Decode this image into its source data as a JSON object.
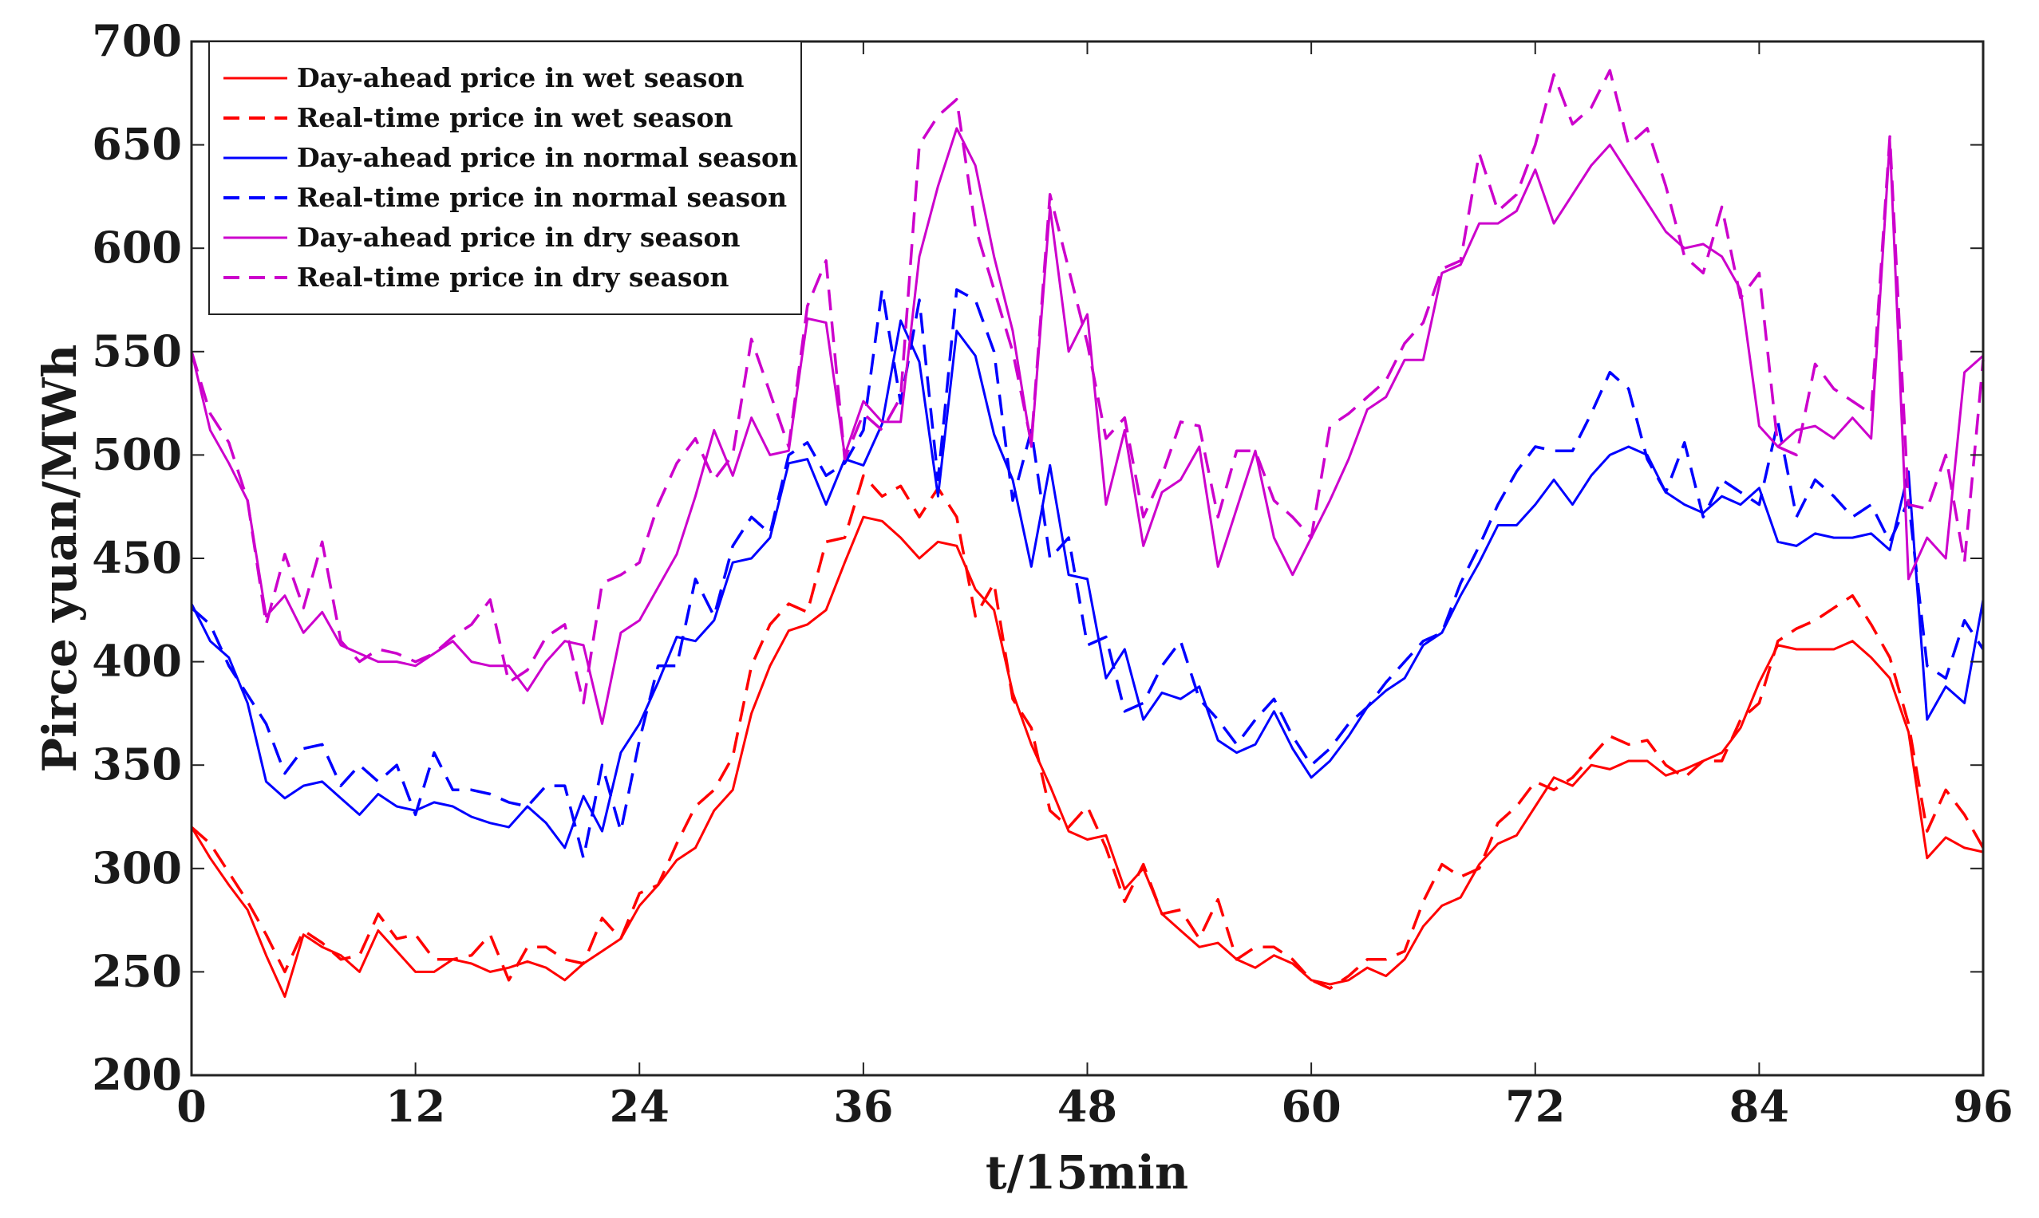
{
  "chart_data": {
    "type": "line",
    "title": "",
    "xlabel": "t/15min",
    "ylabel": "Pirce yuan/MWh",
    "xlim": [
      0,
      96
    ],
    "ylim": [
      200,
      700
    ],
    "xticks": [
      0,
      12,
      24,
      36,
      48,
      60,
      72,
      84,
      96
    ],
    "yticks": [
      200,
      250,
      300,
      350,
      400,
      450,
      500,
      550,
      600,
      650,
      700
    ],
    "grid": false,
    "legend_position": "top-left",
    "x": [
      0,
      1,
      2,
      3,
      4,
      5,
      6,
      7,
      8,
      9,
      10,
      11,
      12,
      13,
      14,
      15,
      16,
      17,
      18,
      19,
      20,
      21,
      22,
      23,
      24,
      25,
      26,
      27,
      28,
      29,
      30,
      31,
      32,
      33,
      34,
      35,
      36,
      37,
      38,
      39,
      40,
      41,
      42,
      43,
      44,
      45,
      46,
      47,
      48,
      49,
      50,
      51,
      52,
      53,
      54,
      55,
      56,
      57,
      58,
      59,
      60,
      61,
      62,
      63,
      64,
      65,
      66,
      67,
      68,
      69,
      70,
      71,
      72,
      73,
      74,
      75,
      76,
      77,
      78,
      79,
      80,
      81,
      82,
      83,
      84,
      85,
      86,
      87,
      88,
      89,
      90,
      91,
      92,
      93,
      94,
      95,
      96
    ],
    "series": [
      {
        "name": "Day-ahead price in wet season",
        "color": "#ff0000",
        "style": "solid",
        "values": [
          320,
          305,
          292,
          280,
          258,
          238,
          268,
          262,
          258,
          250,
          270,
          260,
          250,
          250,
          256,
          254,
          250,
          252,
          255,
          252,
          246,
          254,
          260,
          266,
          282,
          292,
          304,
          310,
          328,
          338,
          375,
          398,
          415,
          418,
          425,
          448,
          470,
          468,
          460,
          450,
          458,
          456,
          435,
          425,
          385,
          360,
          340,
          318,
          314,
          316,
          290,
          300,
          278,
          270,
          262,
          264,
          256,
          252,
          258,
          254,
          246,
          244,
          246,
          252,
          248,
          256,
          272,
          282,
          286,
          302,
          312,
          316,
          330,
          344,
          340,
          350,
          348,
          352,
          352,
          345,
          348,
          352,
          356,
          368,
          390,
          408,
          406,
          406,
          406,
          410,
          402,
          392,
          366,
          305,
          315,
          310,
          308
        ]
      },
      {
        "name": "Real-time price in wet season",
        "color": "#ff0000",
        "style": "dashed",
        "values": [
          320,
          312,
          298,
          284,
          268,
          250,
          270,
          264,
          256,
          258,
          278,
          266,
          268,
          256,
          256,
          258,
          268,
          246,
          262,
          262,
          256,
          254,
          276,
          266,
          288,
          292,
          312,
          330,
          338,
          354,
          398,
          418,
          428,
          424,
          458,
          460,
          490,
          480,
          485,
          470,
          484,
          470,
          422,
          438,
          382,
          368,
          328,
          320,
          330,
          310,
          284,
          302,
          278,
          280,
          266,
          285,
          256,
          262,
          262,
          256,
          246,
          242,
          248,
          256,
          256,
          260,
          284,
          302,
          296,
          300,
          322,
          330,
          342,
          338,
          344,
          354,
          364,
          360,
          362,
          350,
          344,
          352,
          352,
          372,
          380,
          410,
          416,
          420,
          426,
          432,
          418,
          402,
          370,
          318,
          338,
          326,
          310
        ]
      },
      {
        "name": "Day-ahead price in normal season",
        "color": "#0000ff",
        "style": "solid",
        "values": [
          428,
          410,
          402,
          380,
          342,
          334,
          340,
          342,
          334,
          326,
          336,
          330,
          328,
          332,
          330,
          325,
          322,
          320,
          330,
          322,
          310,
          335,
          318,
          356,
          370,
          390,
          412,
          410,
          420,
          448,
          450,
          460,
          496,
          498,
          476,
          498,
          495,
          515,
          565,
          545,
          480,
          560,
          548,
          510,
          488,
          446,
          495,
          442,
          440,
          392,
          406,
          372,
          385,
          382,
          388,
          362,
          356,
          360,
          376,
          358,
          344,
          352,
          364,
          378,
          386,
          392,
          408,
          414,
          432,
          448,
          466,
          466,
          476,
          488,
          476,
          490,
          500,
          504,
          500,
          482,
          476,
          472,
          480,
          476,
          484,
          458,
          456,
          462,
          460,
          460,
          462,
          454,
          492,
          372,
          388,
          380,
          430
        ]
      },
      {
        "name": "Real-time price in normal season",
        "color": "#0000ff",
        "style": "dashed",
        "values": [
          426,
          418,
          398,
          384,
          370,
          346,
          358,
          360,
          340,
          350,
          342,
          350,
          326,
          356,
          338,
          338,
          336,
          332,
          330,
          340,
          340,
          305,
          350,
          318,
          362,
          398,
          398,
          440,
          422,
          456,
          470,
          462,
          500,
          506,
          490,
          496,
          512,
          580,
          525,
          575,
          488,
          580,
          575,
          550,
          478,
          512,
          450,
          460,
          408,
          412,
          376,
          380,
          398,
          410,
          382,
          372,
          360,
          372,
          382,
          364,
          350,
          358,
          370,
          378,
          390,
          400,
          410,
          414,
          438,
          456,
          476,
          492,
          504,
          502,
          502,
          520,
          540,
          532,
          498,
          482,
          506,
          470,
          488,
          482,
          476,
          516,
          470,
          488,
          480,
          470,
          476,
          458,
          478,
          398,
          392,
          420,
          406
        ]
      },
      {
        "name": "Day-ahead price in dry season",
        "color": "#cc00cc",
        "style": "solid",
        "values": [
          550,
          512,
          496,
          478,
          422,
          432,
          414,
          424,
          408,
          404,
          400,
          400,
          398,
          404,
          410,
          400,
          398,
          398,
          386,
          400,
          410,
          408,
          370,
          414,
          420,
          436,
          452,
          480,
          512,
          490,
          518,
          500,
          502,
          566,
          564,
          500,
          526,
          516,
          516,
          596,
          630,
          658,
          640,
          596,
          560,
          504,
          620,
          550,
          568,
          476,
          512,
          456,
          482,
          488,
          504,
          446,
          474,
          502,
          460,
          442,
          460,
          478,
          498,
          522,
          528,
          546,
          546,
          588,
          592,
          612,
          612,
          618,
          638,
          612,
          626,
          640,
          650,
          636,
          622,
          608,
          600,
          602,
          596,
          580,
          514,
          504,
          512,
          514,
          508,
          518,
          508,
          652,
          440,
          460,
          450,
          540,
          548
        ]
      },
      {
        "name": "Real-time price in dry season",
        "color": "#cc00cc",
        "style": "dashed",
        "values": [
          550,
          520,
          506,
          478,
          418,
          452,
          426,
          458,
          410,
          400,
          406,
          404,
          400,
          404,
          412,
          418,
          430,
          390,
          396,
          412,
          418,
          380,
          438,
          442,
          448,
          476,
          496,
          508,
          488,
          500,
          556,
          530,
          504,
          572,
          594,
          498,
          520,
          512,
          528,
          650,
          664,
          672,
          610,
          580,
          550,
          506,
          626,
          590,
          554,
          508,
          518,
          470,
          490,
          516,
          514,
          470,
          502,
          502,
          478,
          470,
          460,
          514,
          520,
          528,
          536,
          554,
          564,
          590,
          594,
          646,
          618,
          626,
          650,
          684,
          660,
          668,
          686,
          650,
          658,
          630,
          596,
          588,
          620,
          576,
          588,
          504,
          500,
          544,
          532,
          526,
          520,
          654,
          476,
          474,
          500,
          448,
          546
        ]
      }
    ]
  }
}
